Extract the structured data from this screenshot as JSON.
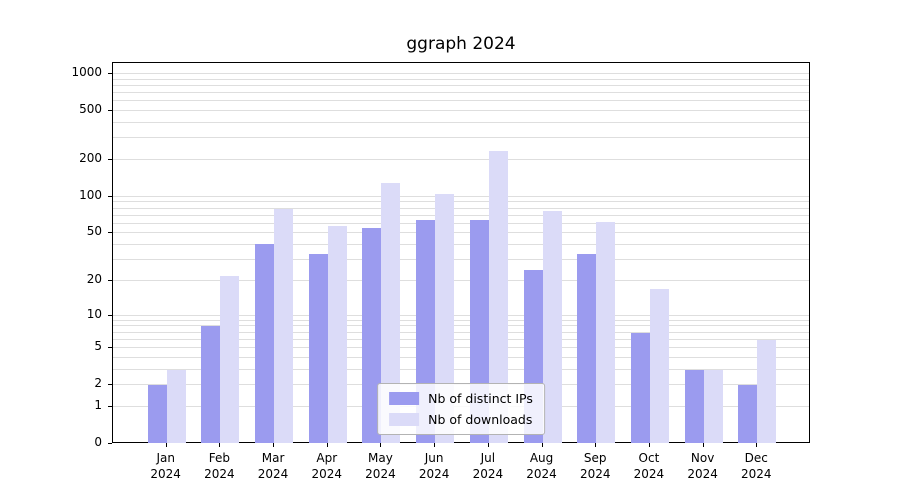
{
  "chart_data": {
    "type": "bar",
    "title": "ggraph 2024",
    "scale": "log1p",
    "categories": [
      "Jan",
      "Feb",
      "Mar",
      "Apr",
      "May",
      "Jun",
      "Jul",
      "Aug",
      "Sep",
      "Oct",
      "Nov",
      "Dec"
    ],
    "category_year": "2024",
    "series": [
      {
        "name": "Nb of distinct IPs",
        "color": "#9b9bef",
        "values": [
          2,
          8,
          41,
          34,
          55,
          65,
          65,
          25,
          34,
          7,
          3,
          2
        ]
      },
      {
        "name": "Nb of downloads",
        "color": "#dbdbf8",
        "values": [
          3,
          22,
          80,
          58,
          130,
          106,
          235,
          76,
          62,
          17,
          3,
          6
        ]
      }
    ],
    "yticks": [
      0,
      1,
      2,
      5,
      10,
      20,
      50,
      100,
      200,
      500,
      1000
    ],
    "ylim": [
      0,
      1400
    ],
    "grid": "horizontal-log-minor",
    "gridline_color": "#dedede",
    "legend_position": "bottom-center-inside"
  }
}
